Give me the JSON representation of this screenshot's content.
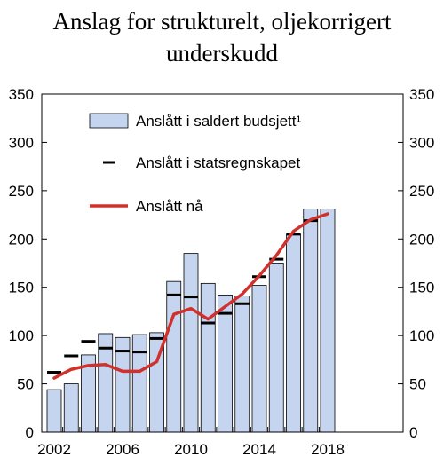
{
  "title_line1": "Anslag for strukturelt, oljekorrigert",
  "title_line2": "underskudd",
  "chart_data": {
    "type": "bar",
    "x": [
      2002,
      2003,
      2004,
      2005,
      2006,
      2007,
      2008,
      2009,
      2010,
      2011,
      2012,
      2013,
      2014,
      2015,
      2016,
      2017,
      2018
    ],
    "x_tick_labels": [
      "2002",
      "2006",
      "2010",
      "2014",
      "2018"
    ],
    "ylim": [
      0,
      350
    ],
    "y_ticks": [
      0,
      50,
      100,
      150,
      200,
      250,
      300,
      350
    ],
    "y_tick_labels": [
      "0",
      "50",
      "100",
      "150",
      "200",
      "250",
      "300",
      "350"
    ],
    "grid": false,
    "legend_position": "top-left",
    "series": [
      {
        "name": "Anslått i saldert budsjett¹",
        "kind": "bar",
        "color": "#c6d5ef",
        "values": [
          44,
          50,
          80,
          102,
          98,
          101,
          103,
          156,
          185,
          154,
          142,
          141,
          152,
          175,
          205,
          231,
          231
        ]
      },
      {
        "name": "Anslått i statsregnskapet",
        "kind": "marker",
        "color": "#000000",
        "values": [
          62,
          79,
          94,
          87,
          84,
          83,
          97,
          142,
          140,
          113,
          123,
          133,
          161,
          179,
          205,
          219,
          null
        ]
      },
      {
        "name": "Anslått nå",
        "kind": "line",
        "color": "#d0312d",
        "values": [
          56,
          65,
          69,
          70,
          63,
          63,
          73,
          122,
          128,
          117,
          130,
          143,
          162,
          183,
          208,
          220,
          226
        ]
      }
    ]
  }
}
